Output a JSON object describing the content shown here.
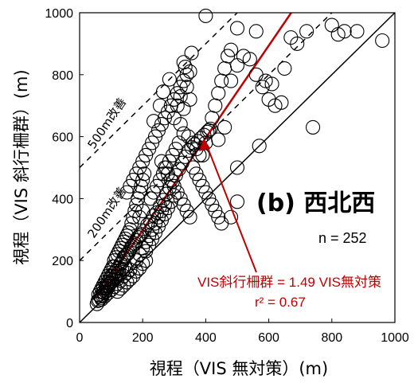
{
  "chart_data": {
    "type": "scatter",
    "xlabel": "視程（VIS 無対策）(m)",
    "ylabel": "視程（VIS 斜行柵群）(m)",
    "xlim": [
      0,
      1000
    ],
    "ylim": [
      0,
      1000
    ],
    "x_ticks": [
      "0",
      "200",
      "400",
      "600",
      "800",
      "1000"
    ],
    "y_ticks": [
      "0",
      "200",
      "400",
      "600",
      "800",
      "1000"
    ],
    "panel_label": "(b) 西北西",
    "n_label": "n = 252",
    "regression": {
      "slope": 1.49,
      "equation": "VIS斜行柵群 = 1.49 VIS無対策",
      "r2_label": "r² = 0.67",
      "color": "#c00000"
    },
    "guide_lines": [
      {
        "offset": 0,
        "style": "solid",
        "label": ""
      },
      {
        "offset": 200,
        "style": "dashed",
        "label": "200m改善"
      },
      {
        "offset": 500,
        "style": "dashed",
        "label": "500m改善"
      }
    ],
    "points": [
      [
        55,
        60
      ],
      [
        62,
        72
      ],
      [
        68,
        80
      ],
      [
        72,
        88
      ],
      [
        78,
        95
      ],
      [
        82,
        100
      ],
      [
        88,
        110
      ],
      [
        92,
        118
      ],
      [
        95,
        125
      ],
      [
        100,
        130
      ],
      [
        60,
        90
      ],
      [
        65,
        100
      ],
      [
        70,
        110
      ],
      [
        75,
        120
      ],
      [
        80,
        130
      ],
      [
        85,
        140
      ],
      [
        90,
        150
      ],
      [
        95,
        160
      ],
      [
        100,
        170
      ],
      [
        105,
        180
      ],
      [
        58,
        70
      ],
      [
        66,
        85
      ],
      [
        74,
        98
      ],
      [
        84,
        112
      ],
      [
        94,
        124
      ],
      [
        104,
        136
      ],
      [
        114,
        148
      ],
      [
        124,
        160
      ],
      [
        134,
        172
      ],
      [
        144,
        184
      ],
      [
        70,
        75
      ],
      [
        80,
        85
      ],
      [
        90,
        95
      ],
      [
        100,
        105
      ],
      [
        110,
        115
      ],
      [
        120,
        125
      ],
      [
        130,
        135
      ],
      [
        140,
        150
      ],
      [
        150,
        160
      ],
      [
        160,
        170
      ],
      [
        110,
        200
      ],
      [
        115,
        210
      ],
      [
        120,
        220
      ],
      [
        125,
        230
      ],
      [
        130,
        240
      ],
      [
        135,
        250
      ],
      [
        140,
        260
      ],
      [
        145,
        270
      ],
      [
        150,
        280
      ],
      [
        155,
        290
      ],
      [
        100,
        150
      ],
      [
        110,
        160
      ],
      [
        120,
        175
      ],
      [
        130,
        190
      ],
      [
        140,
        205
      ],
      [
        150,
        220
      ],
      [
        160,
        235
      ],
      [
        170,
        250
      ],
      [
        180,
        265
      ],
      [
        190,
        280
      ],
      [
        120,
        100
      ],
      [
        130,
        110
      ],
      [
        140,
        120
      ],
      [
        150,
        130
      ],
      [
        160,
        140
      ],
      [
        170,
        150
      ],
      [
        180,
        165
      ],
      [
        190,
        175
      ],
      [
        200,
        190
      ],
      [
        210,
        200
      ],
      [
        160,
        300
      ],
      [
        165,
        320
      ],
      [
        170,
        340
      ],
      [
        175,
        360
      ],
      [
        180,
        380
      ],
      [
        185,
        400
      ],
      [
        190,
        420
      ],
      [
        195,
        440
      ],
      [
        200,
        460
      ],
      [
        205,
        480
      ],
      [
        210,
        230
      ],
      [
        220,
        250
      ],
      [
        230,
        270
      ],
      [
        240,
        290
      ],
      [
        250,
        310
      ],
      [
        260,
        330
      ],
      [
        270,
        350
      ],
      [
        280,
        370
      ],
      [
        290,
        390
      ],
      [
        300,
        410
      ],
      [
        180,
        200
      ],
      [
        190,
        220
      ],
      [
        200,
        240
      ],
      [
        210,
        260
      ],
      [
        220,
        280
      ],
      [
        230,
        300
      ],
      [
        240,
        320
      ],
      [
        250,
        340
      ],
      [
        260,
        360
      ],
      [
        270,
        380
      ],
      [
        150,
        420
      ],
      [
        160,
        440
      ],
      [
        170,
        460
      ],
      [
        180,
        480
      ],
      [
        190,
        500
      ],
      [
        200,
        520
      ],
      [
        210,
        540
      ],
      [
        220,
        560
      ],
      [
        230,
        580
      ],
      [
        240,
        600
      ],
      [
        250,
        620
      ],
      [
        260,
        640
      ],
      [
        270,
        660
      ],
      [
        280,
        680
      ],
      [
        290,
        700
      ],
      [
        300,
        720
      ],
      [
        310,
        740
      ],
      [
        320,
        760
      ],
      [
        330,
        780
      ],
      [
        340,
        800
      ],
      [
        235,
        650
      ],
      [
        255,
        700
      ],
      [
        265,
        745
      ],
      [
        285,
        785
      ],
      [
        300,
        660
      ],
      [
        310,
        700
      ],
      [
        320,
        730
      ],
      [
        330,
        690
      ],
      [
        340,
        760
      ],
      [
        350,
        720
      ],
      [
        330,
        840
      ],
      [
        335,
        825
      ],
      [
        355,
        870
      ],
      [
        350,
        810
      ],
      [
        320,
        640
      ],
      [
        330,
        610
      ],
      [
        345,
        600
      ],
      [
        360,
        580
      ],
      [
        370,
        560
      ],
      [
        380,
        540
      ],
      [
        260,
        520
      ],
      [
        270,
        500
      ],
      [
        280,
        480
      ],
      [
        290,
        460
      ],
      [
        300,
        440
      ],
      [
        310,
        420
      ],
      [
        320,
        400
      ],
      [
        330,
        380
      ],
      [
        340,
        360
      ],
      [
        350,
        340
      ],
      [
        390,
        540
      ],
      [
        400,
        580
      ],
      [
        410,
        620
      ],
      [
        420,
        660
      ],
      [
        430,
        700
      ],
      [
        440,
        740
      ],
      [
        450,
        780
      ],
      [
        460,
        820
      ],
      [
        470,
        860
      ],
      [
        480,
        880
      ],
      [
        360,
        500
      ],
      [
        370,
        480
      ],
      [
        380,
        460
      ],
      [
        390,
        440
      ],
      [
        400,
        420
      ],
      [
        410,
        400
      ],
      [
        420,
        380
      ],
      [
        430,
        360
      ],
      [
        440,
        340
      ],
      [
        450,
        320
      ],
      [
        400,
        990
      ],
      [
        500,
        950
      ],
      [
        560,
        940
      ],
      [
        480,
        780
      ],
      [
        500,
        830
      ],
      [
        520,
        860
      ],
      [
        540,
        850
      ],
      [
        560,
        800
      ],
      [
        580,
        760
      ],
      [
        600,
        720
      ],
      [
        620,
        700
      ],
      [
        650,
        820
      ],
      [
        670,
        920
      ],
      [
        690,
        900
      ],
      [
        720,
        940
      ],
      [
        800,
        960
      ],
      [
        820,
        930
      ],
      [
        840,
        940
      ],
      [
        880,
        940
      ],
      [
        960,
        910
      ],
      [
        740,
        630
      ],
      [
        640,
        710
      ],
      [
        610,
        770
      ],
      [
        590,
        780
      ],
      [
        570,
        570
      ],
      [
        500,
        390
      ],
      [
        500,
        500
      ],
      [
        480,
        340
      ],
      [
        460,
        630
      ],
      [
        440,
        590
      ],
      [
        130,
        190
      ],
      [
        140,
        210
      ],
      [
        110,
        180
      ],
      [
        120,
        140
      ],
      [
        90,
        130
      ],
      [
        85,
        120
      ],
      [
        75,
        110
      ],
      [
        95,
        140
      ],
      [
        105,
        150
      ],
      [
        115,
        165
      ],
      [
        125,
        175
      ],
      [
        135,
        195
      ],
      [
        145,
        215
      ],
      [
        155,
        225
      ],
      [
        165,
        245
      ],
      [
        175,
        255
      ],
      [
        185,
        275
      ],
      [
        195,
        285
      ],
      [
        205,
        295
      ],
      [
        215,
        315
      ],
      [
        225,
        325
      ],
      [
        235,
        345
      ],
      [
        245,
        355
      ],
      [
        255,
        375
      ],
      [
        265,
        395
      ],
      [
        275,
        415
      ],
      [
        285,
        435
      ],
      [
        295,
        455
      ],
      [
        305,
        475
      ],
      [
        315,
        495
      ],
      [
        325,
        515
      ],
      [
        335,
        535
      ],
      [
        345,
        555
      ],
      [
        355,
        565
      ],
      [
        365,
        575
      ],
      [
        375,
        585
      ],
      [
        385,
        595
      ],
      [
        395,
        605
      ],
      [
        405,
        615
      ],
      [
        415,
        625
      ],
      [
        225,
        400
      ],
      [
        235,
        420
      ],
      [
        245,
        440
      ],
      [
        255,
        460
      ],
      [
        265,
        480
      ],
      [
        275,
        500
      ],
      [
        285,
        520
      ],
      [
        295,
        540
      ],
      [
        305,
        560
      ],
      [
        315,
        580
      ],
      [
        190,
        340
      ],
      [
        200,
        360
      ]
    ]
  }
}
